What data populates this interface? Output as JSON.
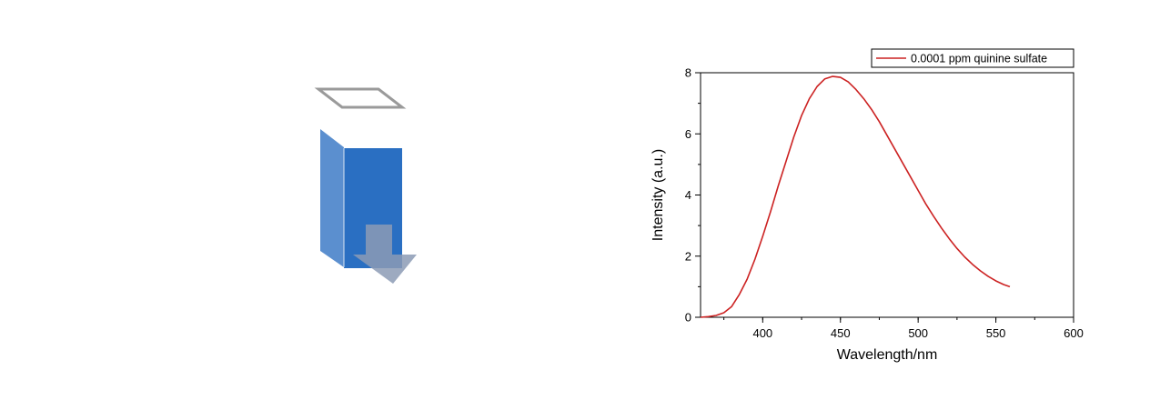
{
  "illustration": {
    "cuvette_front_color": "#2a6fc2",
    "cuvette_side_color": "#5b8fcf",
    "lid_color": "#9a9a9a",
    "arrow_color": "#8c9bb5"
  },
  "chart_data": {
    "type": "line",
    "title": "",
    "xlabel": "Wavelength/nm",
    "ylabel": "Intensity (a.u.)",
    "xlim": [
      360,
      600
    ],
    "ylim": [
      0,
      8
    ],
    "xticks": [
      400,
      450,
      500,
      550,
      600
    ],
    "yticks": [
      0,
      2,
      4,
      6,
      8
    ],
    "grid": false,
    "legend_position": "top-right",
    "series": [
      {
        "name": "0.0001 ppm quinine sulfate",
        "color": "#cc2222",
        "x": [
          360,
          365,
          370,
          375,
          380,
          385,
          390,
          395,
          400,
          405,
          410,
          415,
          420,
          425,
          430,
          435,
          440,
          445,
          450,
          455,
          460,
          465,
          470,
          475,
          480,
          485,
          490,
          495,
          500,
          505,
          510,
          515,
          520,
          525,
          530,
          535,
          540,
          545,
          550,
          555,
          559
        ],
        "y": [
          0.0,
          0.02,
          0.06,
          0.15,
          0.35,
          0.75,
          1.25,
          1.9,
          2.65,
          3.45,
          4.3,
          5.1,
          5.9,
          6.6,
          7.15,
          7.55,
          7.8,
          7.88,
          7.85,
          7.7,
          7.45,
          7.15,
          6.8,
          6.4,
          5.95,
          5.5,
          5.05,
          4.6,
          4.15,
          3.7,
          3.3,
          2.92,
          2.57,
          2.25,
          1.97,
          1.73,
          1.52,
          1.34,
          1.19,
          1.07,
          1.0
        ]
      }
    ]
  }
}
